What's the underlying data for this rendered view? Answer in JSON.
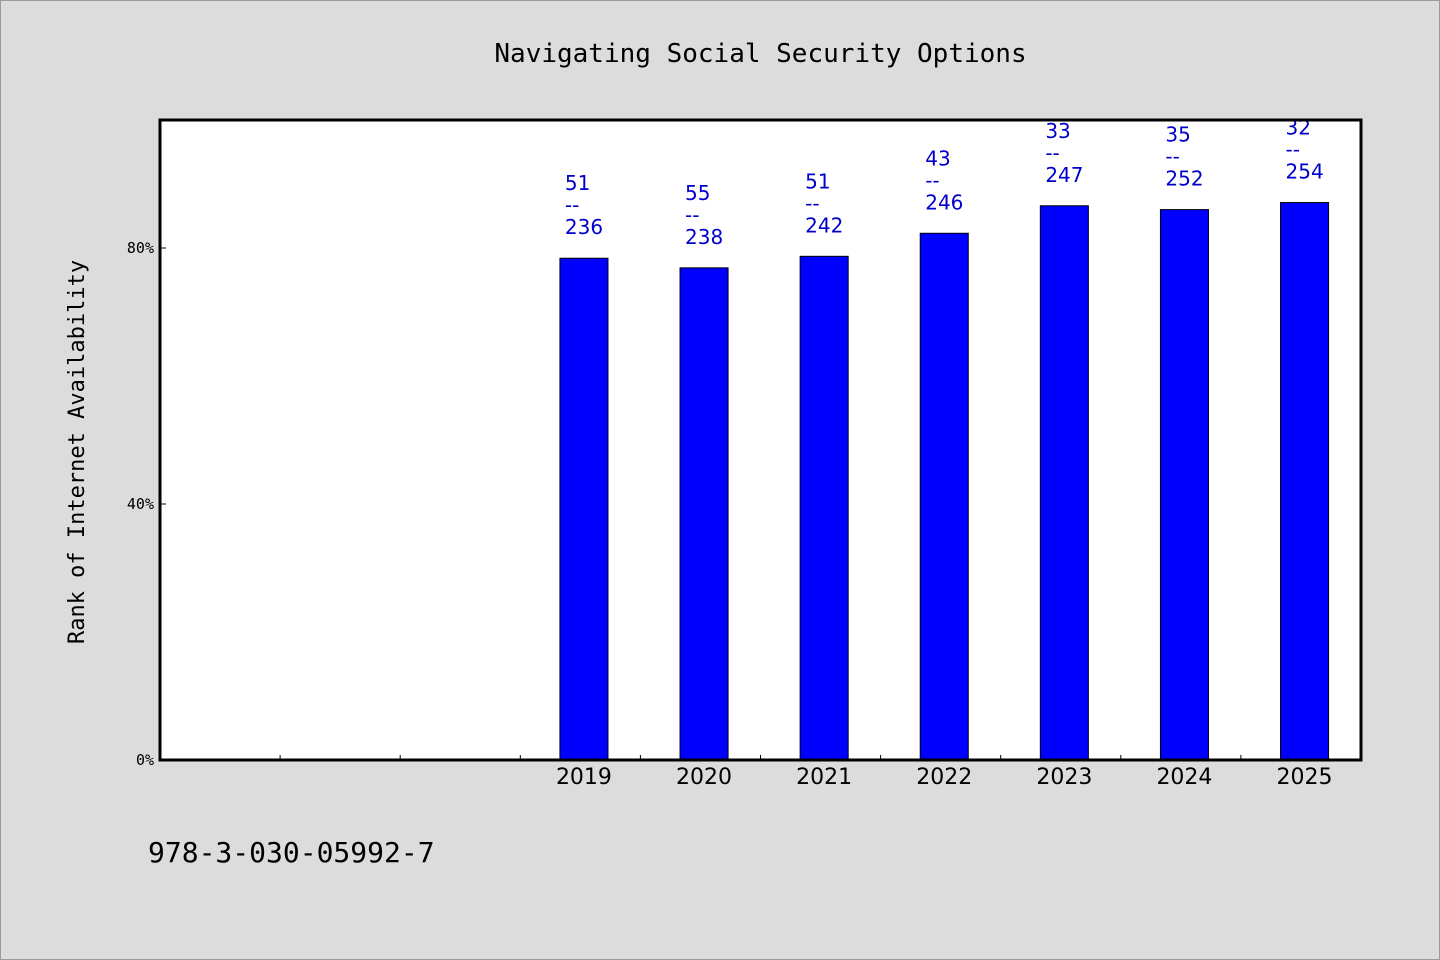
{
  "chart_data": {
    "type": "bar",
    "title": "Navigating Social Security Options",
    "ylabel": "Rank of Internet Availability",
    "xlabel": "",
    "categories": [
      "",
      "",
      "",
      "2019",
      "2020",
      "2021",
      "2022",
      "2023",
      "2024",
      "2025"
    ],
    "values": [
      null,
      null,
      null,
      78.4,
      76.9,
      78.7,
      82.3,
      86.6,
      86.0,
      87.1
    ],
    "data_labels": [
      {
        "top": "51",
        "sep": "--",
        "bottom": "236"
      },
      {
        "top": "55",
        "sep": "--",
        "bottom": "238"
      },
      {
        "top": "51",
        "sep": "--",
        "bottom": "242"
      },
      {
        "top": "43",
        "sep": "--",
        "bottom": "246"
      },
      {
        "top": "33",
        "sep": "--",
        "bottom": "247"
      },
      {
        "top": "35",
        "sep": "--",
        "bottom": "252"
      },
      {
        "top": "32",
        "sep": "--",
        "bottom": "254"
      }
    ],
    "yticks": [
      {
        "value": 0,
        "label": "0%"
      },
      {
        "value": 40,
        "label": "40%"
      },
      {
        "value": 80,
        "label": "80%"
      }
    ],
    "ylim": [
      0,
      100
    ],
    "grid": false,
    "bar_color": "#0000ff",
    "label_color": "#0000cc",
    "legend": "none"
  },
  "footnote": "978-3-030-05992-7"
}
